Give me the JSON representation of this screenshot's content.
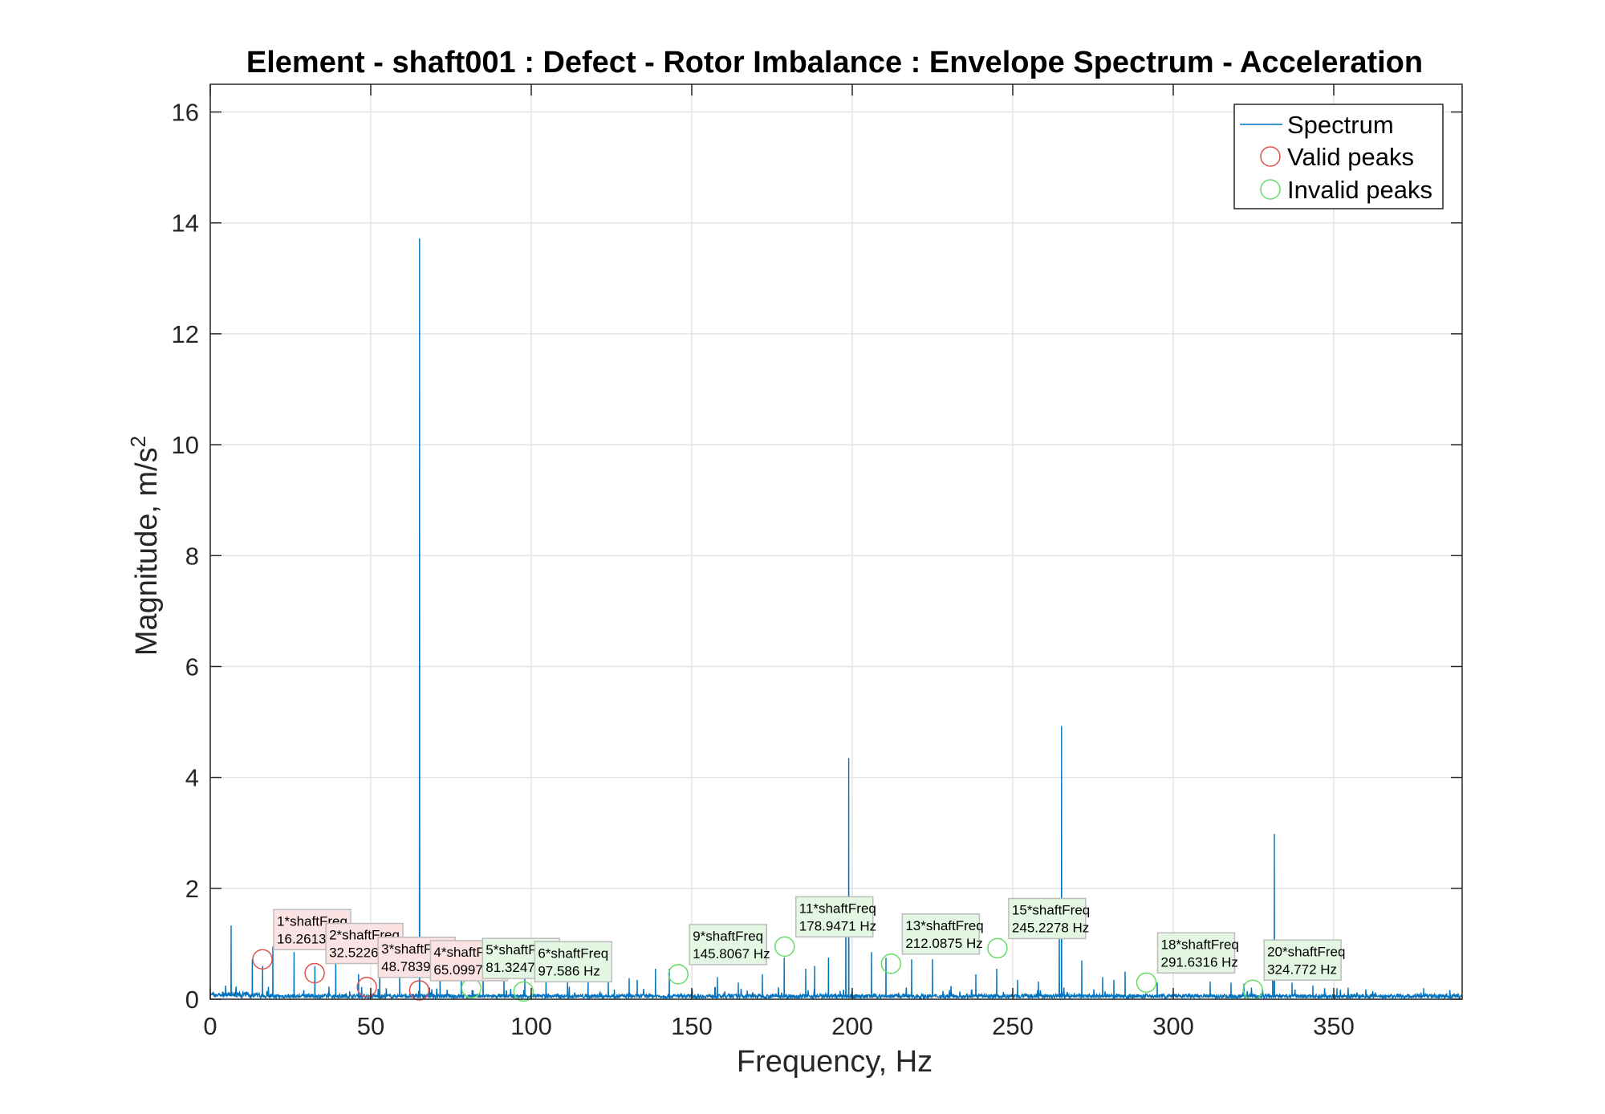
{
  "chart_data": {
    "type": "line",
    "title": "Element - shaft001 : Defect - Rotor Imbalance : Envelope Spectrum - Acceleration",
    "xlabel": "Frequency, Hz",
    "ylabel": "Magnitude, m/s",
    "ylabel_superscript": "2",
    "xlim": [
      0,
      390
    ],
    "ylim": [
      0,
      16.5
    ],
    "xticks": [
      0,
      50,
      100,
      150,
      200,
      250,
      300,
      350
    ],
    "yticks": [
      0,
      2,
      4,
      6,
      8,
      10,
      12,
      14,
      16
    ],
    "grid": true,
    "legend_position": "top-right",
    "colors": {
      "spectrum": "#0072BD",
      "valid": "#D9534F",
      "invalid": "#66DD66",
      "valid_box": "#FBE3E3",
      "invalid_box": "#E3F7E3"
    },
    "legend": [
      {
        "key": "spectrum",
        "label": "Spectrum",
        "marker": "line"
      },
      {
        "key": "valid",
        "label": "Valid peaks",
        "marker": "circle"
      },
      {
        "key": "invalid",
        "label": "Invalid peaks",
        "marker": "circle"
      }
    ],
    "spectrum_peaks": [
      [
        6.5,
        1.33
      ],
      [
        13.1,
        0.72
      ],
      [
        16.3,
        0.6
      ],
      [
        19.5,
        0.95
      ],
      [
        26.1,
        0.85
      ],
      [
        32.6,
        0.6
      ],
      [
        39.1,
        0.72
      ],
      [
        46.2,
        0.45
      ],
      [
        52.8,
        0.65
      ],
      [
        59.0,
        0.4
      ],
      [
        65.2,
        13.72
      ],
      [
        71.6,
        0.5
      ],
      [
        78.2,
        0.45
      ],
      [
        85.0,
        0.5
      ],
      [
        91.5,
        0.42
      ],
      [
        98.0,
        0.4
      ],
      [
        104.6,
        0.35
      ],
      [
        111.3,
        0.35
      ],
      [
        117.7,
        0.4
      ],
      [
        124.0,
        0.35
      ],
      [
        130.5,
        0.38
      ],
      [
        133.0,
        0.35
      ],
      [
        138.7,
        0.55
      ],
      [
        143.0,
        0.55
      ],
      [
        158.0,
        0.4
      ],
      [
        164.5,
        0.3
      ],
      [
        172.0,
        0.45
      ],
      [
        178.8,
        0.75
      ],
      [
        185.5,
        0.55
      ],
      [
        188.3,
        0.6
      ],
      [
        192.6,
        0.75
      ],
      [
        198.0,
        1.7
      ],
      [
        198.9,
        4.35
      ],
      [
        206.0,
        0.85
      ],
      [
        210.5,
        0.75
      ],
      [
        218.5,
        0.72
      ],
      [
        225.0,
        0.72
      ],
      [
        238.5,
        0.45
      ],
      [
        245.0,
        0.55
      ],
      [
        251.5,
        0.35
      ],
      [
        258.0,
        0.32
      ],
      [
        264.5,
        1.6
      ],
      [
        265.2,
        4.93
      ],
      [
        271.5,
        0.7
      ],
      [
        278.0,
        0.4
      ],
      [
        281.5,
        0.35
      ],
      [
        285.0,
        0.5
      ],
      [
        295.0,
        0.3
      ],
      [
        311.5,
        0.32
      ],
      [
        318.0,
        0.3
      ],
      [
        322.0,
        0.28
      ],
      [
        331.0,
        1.0
      ],
      [
        331.5,
        2.98
      ],
      [
        337.0,
        0.3
      ],
      [
        343.5,
        0.25
      ],
      [
        351.0,
        0.2
      ],
      [
        363.0,
        0.12
      ],
      [
        370.0,
        0.1
      ],
      [
        378.0,
        0.2
      ],
      [
        385.0,
        0.1
      ]
    ],
    "peaks": [
      {
        "label": "1*shaftFreq",
        "freq_text": "16.2613 Hz",
        "x": 16.2613,
        "y": 0.72,
        "valid": true
      },
      {
        "label": "2*shaftFreq",
        "freq_text": "32.5226 Hz",
        "x": 32.5226,
        "y": 0.47,
        "valid": true
      },
      {
        "label": "3*shaftFreq",
        "freq_text": "48.7839 Hz",
        "x": 48.7839,
        "y": 0.22,
        "valid": true
      },
      {
        "label": "4*shaftFreq",
        "freq_text": "65.0997 Hz",
        "x": 65.0997,
        "y": 0.16,
        "valid": true
      },
      {
        "label": "5*shaftFreq",
        "freq_text": "81.3247 Hz",
        "x": 81.3247,
        "y": 0.2,
        "valid": false
      },
      {
        "label": "6*shaftFreq",
        "freq_text": "97.586 Hz",
        "x": 97.586,
        "y": 0.14,
        "valid": false
      },
      {
        "label": "9*shaftFreq",
        "freq_text": "145.8067 Hz",
        "x": 145.8067,
        "y": 0.45,
        "valid": false
      },
      {
        "label": "11*shaftFreq",
        "freq_text": "178.9471 Hz",
        "x": 178.9471,
        "y": 0.95,
        "valid": false
      },
      {
        "label": "13*shaftFreq",
        "freq_text": "212.0875 Hz",
        "x": 212.0875,
        "y": 0.64,
        "valid": false
      },
      {
        "label": "15*shaftFreq",
        "freq_text": "245.2278 Hz",
        "x": 245.2278,
        "y": 0.92,
        "valid": false
      },
      {
        "label": "18*shaftFreq",
        "freq_text": "291.6316 Hz",
        "x": 291.6316,
        "y": 0.3,
        "valid": false
      },
      {
        "label": "20*shaftFreq",
        "freq_text": "324.772 Hz",
        "x": 324.772,
        "y": 0.17,
        "valid": false
      }
    ]
  }
}
